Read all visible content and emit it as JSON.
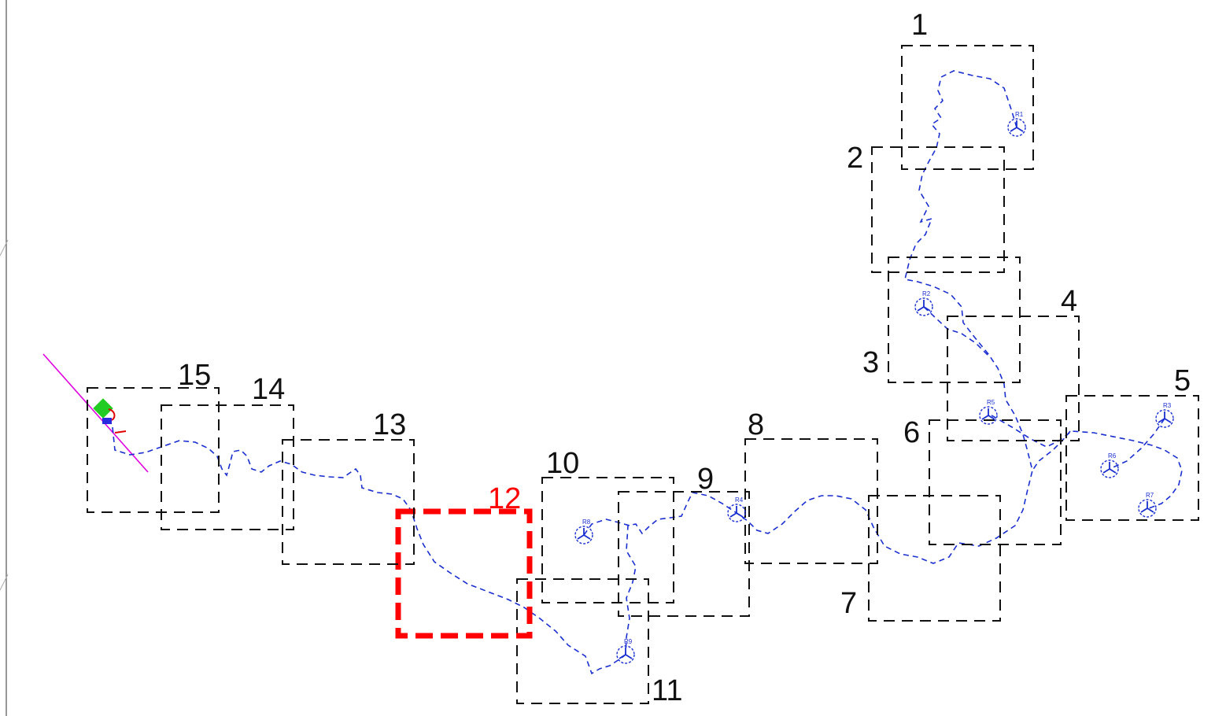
{
  "sheets": [
    {
      "label": "1",
      "highlight": false
    },
    {
      "label": "2",
      "highlight": false
    },
    {
      "label": "3",
      "highlight": false
    },
    {
      "label": "4",
      "highlight": false
    },
    {
      "label": "5",
      "highlight": false
    },
    {
      "label": "6",
      "highlight": false
    },
    {
      "label": "7",
      "highlight": false
    },
    {
      "label": "8",
      "highlight": false
    },
    {
      "label": "9",
      "highlight": false
    },
    {
      "label": "10",
      "highlight": false
    },
    {
      "label": "11",
      "highlight": false
    },
    {
      "label": "12",
      "highlight": true
    },
    {
      "label": "13",
      "highlight": false
    },
    {
      "label": "14",
      "highlight": false
    },
    {
      "label": "15",
      "highlight": false
    }
  ],
  "turbines": [
    "R1",
    "R2",
    "R3",
    "R4",
    "R5",
    "R6",
    "R7",
    "R8",
    "R9"
  ],
  "colors": {
    "sheet_border": "#111111",
    "highlight": "#ff0000",
    "cable_route": "#1a2fd0",
    "substation": "#22cc22",
    "boundary_line": "#e000e0"
  }
}
